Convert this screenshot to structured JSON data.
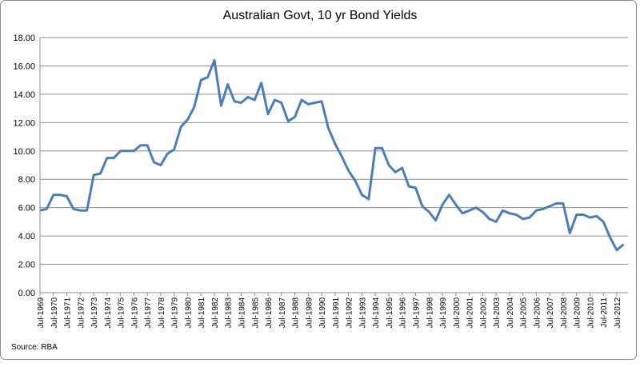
{
  "chart_data": {
    "type": "line",
    "title": "Australian Govt, 10 yr Bond Yields",
    "source": "Source: RBA",
    "color": "#4a7ebb",
    "grid": true,
    "ylim": [
      0,
      18
    ],
    "yticks": [
      {
        "value": 0,
        "label": "0.00"
      },
      {
        "value": 2,
        "label": "2.00"
      },
      {
        "value": 4,
        "label": "4.00"
      },
      {
        "value": 6,
        "label": "6.00"
      },
      {
        "value": 8,
        "label": "8.00"
      },
      {
        "value": 10,
        "label": "10.00"
      },
      {
        "value": 12,
        "label": "12.00"
      },
      {
        "value": 14,
        "label": "14.00"
      },
      {
        "value": 16,
        "label": "16.00"
      },
      {
        "value": 18,
        "label": "18.00"
      }
    ],
    "categories": [
      "Jul-1969",
      null,
      "Jul-1970",
      null,
      "Jul-1971",
      null,
      "Jul-1972",
      null,
      "Jul-1973",
      null,
      "Jul-1974",
      null,
      "Jul-1975",
      null,
      "Jul-1976",
      null,
      "Jul-1977",
      null,
      "Jul-1978",
      null,
      "Jul-1979",
      null,
      "Jul-1980",
      null,
      "Jul-1981",
      null,
      "Jul-1982",
      null,
      "Jul-1983",
      null,
      "Jul-1984",
      null,
      "Jul-1985",
      null,
      "Jul-1986",
      null,
      "Jul-1987",
      null,
      "Jul-1988",
      null,
      "Jul-1989",
      null,
      "Jul-1990",
      null,
      "Jul-1991",
      null,
      "Jul-1992",
      null,
      "Jul-1993",
      null,
      "Jul-1994",
      null,
      "Jul-1995",
      null,
      "Jul-1996",
      null,
      "Jul-1997",
      null,
      "Jul-1998",
      null,
      "Jul-1999",
      null,
      "Jul-2000",
      null,
      "Jul-2001",
      null,
      "Jul-2002",
      null,
      "Jul-2003",
      null,
      "Jul-2004",
      null,
      "Jul-2005",
      null,
      "Jul-2006",
      null,
      "Jul-2007",
      null,
      "Jul-2008",
      null,
      "Jul-2009",
      null,
      "Jul-2010",
      null,
      "Jul-2011",
      null,
      "Jul-2012",
      null
    ],
    "values": [
      5.8,
      5.9,
      6.9,
      6.9,
      6.8,
      5.9,
      5.8,
      5.8,
      8.3,
      8.4,
      9.5,
      9.5,
      10.0,
      10.0,
      10.0,
      10.4,
      10.4,
      9.2,
      9.0,
      9.8,
      10.1,
      11.7,
      12.2,
      13.1,
      15.0,
      15.2,
      16.4,
      13.2,
      14.7,
      13.5,
      13.4,
      13.8,
      13.6,
      14.8,
      12.6,
      13.6,
      13.4,
      12.1,
      12.4,
      13.6,
      13.3,
      13.4,
      13.5,
      11.6,
      10.5,
      9.6,
      8.6,
      7.9,
      6.9,
      6.6,
      10.2,
      10.2,
      9.0,
      8.5,
      8.8,
      7.5,
      7.4,
      6.1,
      5.7,
      5.1,
      6.2,
      6.9,
      6.2,
      5.6,
      5.8,
      6.0,
      5.7,
      5.2,
      5.0,
      5.8,
      5.6,
      5.5,
      5.2,
      5.3,
      5.8,
      5.9,
      6.1,
      6.3,
      6.3,
      4.2,
      5.5,
      5.5,
      5.3,
      5.4,
      5.0,
      3.9,
      3.0,
      3.4
    ]
  }
}
